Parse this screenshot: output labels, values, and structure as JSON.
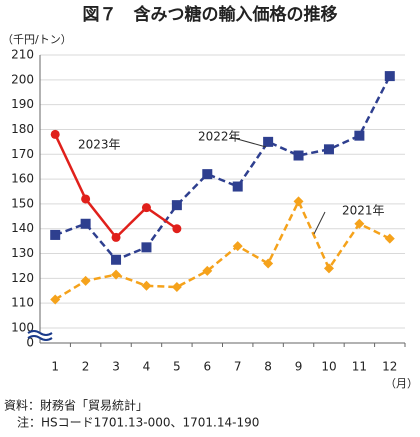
{
  "chart_data": {
    "type": "line",
    "title": "図７　含みつ糖の輸入価格の推移",
    "y_unit": "（千円/トン）",
    "x_unit": "（月）",
    "categories": [
      "1",
      "2",
      "3",
      "4",
      "5",
      "6",
      "7",
      "8",
      "9",
      "10",
      "11",
      "12"
    ],
    "series": [
      {
        "name": "2022年",
        "color": "#2e3f8f",
        "marker": "square",
        "dash": true,
        "values": [
          137.5,
          142,
          127.5,
          132.5,
          149.5,
          162,
          157,
          175,
          169.5,
          172,
          177.5,
          201.5
        ]
      },
      {
        "name": "2021年",
        "color": "#f5a21b",
        "marker": "diamond",
        "dash": true,
        "values": [
          111.5,
          119,
          121.5,
          117,
          116.5,
          123,
          133,
          126,
          151,
          124,
          142,
          136
        ]
      },
      {
        "name": "2023年",
        "color": "#e0201b",
        "marker": "circle",
        "dash": false,
        "values": [
          178,
          152,
          136.5,
          148.5,
          140,
          null,
          null,
          null,
          null,
          null,
          null,
          null
        ]
      }
    ],
    "ylim": [
      100,
      210
    ],
    "yticks": [
      0,
      100,
      110,
      120,
      130,
      140,
      150,
      160,
      170,
      180,
      190,
      200,
      210
    ],
    "axis_break": true,
    "grid": true,
    "notes": [
      "資料：財務省「貿易統計」",
      "注：HSコード1701.13-000、1701.14-190"
    ]
  }
}
